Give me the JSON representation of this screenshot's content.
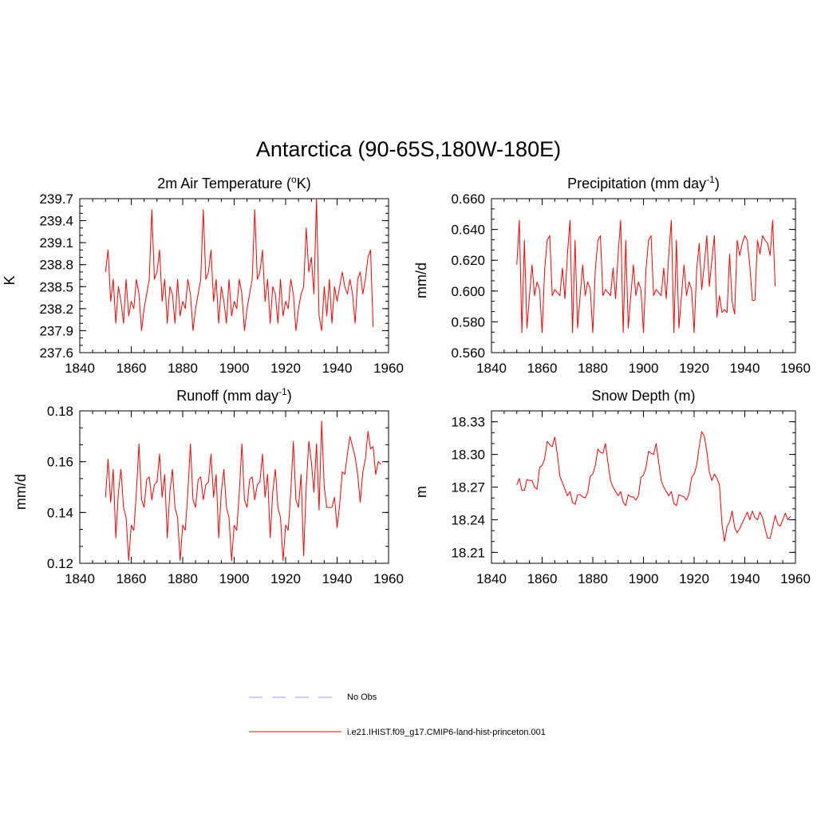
{
  "figure": {
    "title": "Antarctica (90-65S,180W-180E)"
  },
  "colors": {
    "model": "#ff0000",
    "obs": "#9999ff"
  },
  "legend": {
    "items": [
      {
        "label": "No Obs",
        "style": "dashed",
        "color": "#9999ff"
      },
      {
        "label": "i.e21.IHIST.f09_g17.CMIP6-land-hist-princeton.001",
        "style": "solid",
        "color": "#ff0000"
      }
    ]
  },
  "chart_data": [
    {
      "type": "line",
      "title_main": "2m Air Temperature (",
      "title_sup": "o",
      "title_tail": "K)",
      "ylabel": "K",
      "xlim": [
        1840,
        1960
      ],
      "ylim": [
        237.6,
        239.7
      ],
      "xticks": [
        "1840",
        "1860",
        "1880",
        "1900",
        "1920",
        "1940",
        "1960"
      ],
      "xtick_values": [
        1840,
        1860,
        1880,
        1900,
        1920,
        1940,
        1960
      ],
      "yticks": [
        "237.6",
        "237.9",
        "238.2",
        "238.5",
        "238.8",
        "239.1",
        "239.4",
        "239.7"
      ],
      "ytick_values": [
        237.6,
        237.9,
        238.2,
        238.5,
        238.8,
        239.1,
        239.4,
        239.7
      ],
      "x_start": 1850,
      "series": [
        {
          "values": [
            238.7,
            239.0,
            238.3,
            238.6,
            238.0,
            238.5,
            238.3,
            238.0,
            238.6,
            238.1,
            238.3,
            238.2,
            238.6,
            238.4,
            237.9,
            238.2,
            238.4,
            238.6,
            239.55,
            238.6,
            238.7,
            239.0,
            238.3,
            238.6,
            238.0,
            238.5,
            238.4,
            238.0,
            238.6,
            238.1,
            238.3,
            238.2,
            238.6,
            238.4,
            237.9,
            238.2,
            238.4,
            238.6,
            239.55,
            238.6,
            238.7,
            239.0,
            238.3,
            238.6,
            238.0,
            238.5,
            238.3,
            238.0,
            238.6,
            238.1,
            238.3,
            238.2,
            238.6,
            238.4,
            237.9,
            238.2,
            238.4,
            238.6,
            239.55,
            238.6,
            238.7,
            239.0,
            238.3,
            238.6,
            238.0,
            238.5,
            238.4,
            238.0,
            238.6,
            238.1,
            238.3,
            238.2,
            238.6,
            238.4,
            237.9,
            238.2,
            238.4,
            238.5,
            239.3,
            238.7,
            238.9,
            238.4,
            239.7,
            238.1,
            237.9,
            238.5,
            238.1,
            238.6,
            238.0,
            238.5,
            238.3,
            238.5,
            238.7,
            238.5,
            238.4,
            238.6,
            238.4,
            238.0,
            238.6,
            238.7,
            238.4,
            238.6,
            238.9,
            239.0,
            237.95
          ]
        }
      ]
    },
    {
      "type": "line",
      "title_main": "Precipitation (mm day",
      "title_sup": "-1",
      "title_tail": ")",
      "ylabel": "mm/d",
      "xlim": [
        1840,
        1960
      ],
      "ylim": [
        0.56,
        0.66
      ],
      "xticks": [
        "1840",
        "1860",
        "1880",
        "1900",
        "1920",
        "1940",
        "1960"
      ],
      "xtick_values": [
        1840,
        1860,
        1880,
        1900,
        1920,
        1940,
        1960
      ],
      "yticks": [
        "0.560",
        "0.580",
        "0.600",
        "0.620",
        "0.640",
        "0.660"
      ],
      "ytick_values": [
        0.56,
        0.58,
        0.6,
        0.62,
        0.64,
        0.66
      ],
      "x_start": 1850,
      "series": [
        {
          "values": [
            0.617,
            0.646,
            0.573,
            0.633,
            0.576,
            0.597,
            0.617,
            0.597,
            0.606,
            0.601,
            0.573,
            0.614,
            0.633,
            0.636,
            0.597,
            0.601,
            0.599,
            0.597,
            0.615,
            0.595,
            0.624,
            0.646,
            0.573,
            0.633,
            0.576,
            0.597,
            0.617,
            0.597,
            0.606,
            0.601,
            0.573,
            0.614,
            0.633,
            0.636,
            0.597,
            0.601,
            0.599,
            0.597,
            0.615,
            0.595,
            0.624,
            0.646,
            0.573,
            0.633,
            0.576,
            0.597,
            0.617,
            0.597,
            0.606,
            0.601,
            0.573,
            0.614,
            0.633,
            0.636,
            0.597,
            0.601,
            0.599,
            0.597,
            0.615,
            0.595,
            0.624,
            0.646,
            0.573,
            0.633,
            0.576,
            0.597,
            0.617,
            0.597,
            0.606,
            0.601,
            0.573,
            0.614,
            0.631,
            0.601,
            0.617,
            0.636,
            0.603,
            0.62,
            0.636,
            0.583,
            0.597,
            0.586,
            0.588,
            0.586,
            0.624,
            0.593,
            0.585,
            0.633,
            0.623,
            0.631,
            0.636,
            0.633,
            0.616,
            0.594,
            0.594,
            0.633,
            0.624,
            0.636,
            0.633,
            0.631,
            0.623,
            0.646,
            0.603
          ]
        }
      ]
    },
    {
      "type": "line",
      "title_main": "Runoff (mm day",
      "title_sup": "-1",
      "title_tail": ")",
      "ylabel": "mm/d",
      "xlim": [
        1840,
        1960
      ],
      "ylim": [
        0.12,
        0.18
      ],
      "xticks": [
        "1840",
        "1860",
        "1880",
        "1900",
        "1920",
        "1940",
        "1960"
      ],
      "xtick_values": [
        1840,
        1860,
        1880,
        1900,
        1920,
        1940,
        1960
      ],
      "yticks": [
        "0.12",
        "0.14",
        "0.16",
        "0.18"
      ],
      "ytick_values": [
        0.12,
        0.14,
        0.16,
        0.18
      ],
      "x_start": 1850,
      "series": [
        {
          "values": [
            0.146,
            0.161,
            0.144,
            0.157,
            0.13,
            0.148,
            0.157,
            0.142,
            0.138,
            0.121,
            0.135,
            0.133,
            0.148,
            0.167,
            0.145,
            0.142,
            0.153,
            0.154,
            0.145,
            0.151,
            0.152,
            0.163,
            0.146,
            0.155,
            0.13,
            0.148,
            0.157,
            0.142,
            0.138,
            0.121,
            0.135,
            0.133,
            0.148,
            0.167,
            0.145,
            0.142,
            0.153,
            0.154,
            0.145,
            0.151,
            0.152,
            0.163,
            0.146,
            0.155,
            0.13,
            0.148,
            0.157,
            0.142,
            0.138,
            0.121,
            0.135,
            0.133,
            0.148,
            0.167,
            0.145,
            0.142,
            0.153,
            0.154,
            0.145,
            0.151,
            0.152,
            0.163,
            0.146,
            0.155,
            0.13,
            0.148,
            0.157,
            0.142,
            0.138,
            0.121,
            0.135,
            0.133,
            0.148,
            0.168,
            0.145,
            0.142,
            0.155,
            0.123,
            0.15,
            0.168,
            0.16,
            0.148,
            0.167,
            0.141,
            0.176,
            0.15,
            0.142,
            0.142,
            0.142,
            0.146,
            0.134,
            0.143,
            0.156,
            0.155,
            0.163,
            0.17,
            0.166,
            0.162,
            0.155,
            0.144,
            0.156,
            0.161,
            0.172,
            0.165,
            0.166,
            0.155,
            0.16,
            0.159
          ]
        }
      ]
    },
    {
      "type": "line",
      "title_main": "Snow Depth (m)",
      "title_sup": "",
      "title_tail": "",
      "ylabel": "m",
      "xlim": [
        1840,
        1960
      ],
      "ylim": [
        18.2,
        18.34
      ],
      "xticks": [
        "1840",
        "1860",
        "1880",
        "1900",
        "1920",
        "1940",
        "1960"
      ],
      "xtick_values": [
        1840,
        1860,
        1880,
        1900,
        1920,
        1940,
        1960
      ],
      "yticks": [
        "18.21",
        "18.24",
        "18.27",
        "18.30",
        "18.33"
      ],
      "ytick_values": [
        18.21,
        18.24,
        18.27,
        18.3,
        18.33
      ],
      "x_start": 1850,
      "series": [
        {
          "values": [
            18.272,
            18.278,
            18.267,
            18.267,
            18.277,
            18.276,
            18.276,
            18.27,
            18.268,
            18.288,
            18.29,
            18.296,
            18.312,
            18.309,
            18.307,
            18.316,
            18.3,
            18.28,
            18.274,
            18.268,
            18.262,
            18.266,
            18.256,
            18.254,
            18.263,
            18.263,
            18.261,
            18.26,
            18.265,
            18.28,
            18.282,
            18.29,
            18.305,
            18.302,
            18.301,
            18.31,
            18.292,
            18.276,
            18.27,
            18.266,
            18.262,
            18.266,
            18.256,
            18.253,
            18.263,
            18.261,
            18.261,
            18.258,
            18.262,
            18.279,
            18.281,
            18.288,
            18.303,
            18.301,
            18.3,
            18.31,
            18.293,
            18.276,
            18.27,
            18.266,
            18.262,
            18.266,
            18.255,
            18.253,
            18.263,
            18.262,
            18.261,
            18.258,
            18.264,
            18.279,
            18.282,
            18.29,
            18.307,
            18.321,
            18.317,
            18.303,
            18.284,
            18.276,
            18.282,
            18.278,
            18.272,
            18.236,
            18.22,
            18.234,
            18.238,
            18.248,
            18.233,
            18.228,
            18.232,
            18.237,
            18.242,
            18.247,
            18.24,
            18.248,
            18.242,
            18.24,
            18.247,
            18.242,
            18.232,
            18.223,
            18.223,
            18.233,
            18.244,
            18.236,
            18.234,
            18.24,
            18.246,
            18.24,
            18.243
          ]
        }
      ]
    }
  ]
}
